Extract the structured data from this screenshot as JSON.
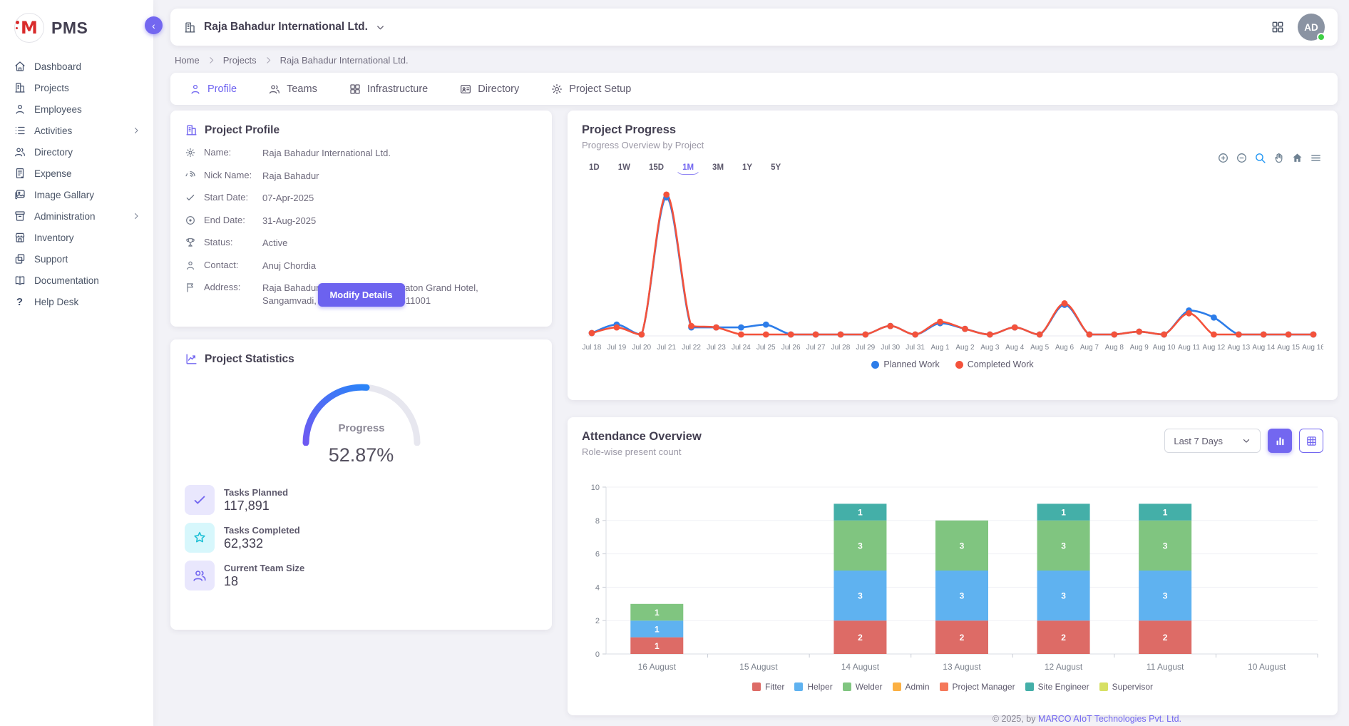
{
  "app": {
    "logo_text": "PMS"
  },
  "sidebar": {
    "items": [
      {
        "label": "Dashboard"
      },
      {
        "label": "Projects"
      },
      {
        "label": "Employees"
      },
      {
        "label": "Activities",
        "expandable": true
      },
      {
        "label": "Directory"
      },
      {
        "label": "Expense"
      },
      {
        "label": "Image Gallary"
      },
      {
        "label": "Administration",
        "expandable": true
      },
      {
        "label": "Inventory"
      },
      {
        "label": "Support"
      },
      {
        "label": "Documentation"
      },
      {
        "label": "Help Desk"
      }
    ]
  },
  "header": {
    "company": "Raja Bahadur International Ltd.",
    "avatar_initials": "AD"
  },
  "breadcrumb": {
    "items": [
      "Home",
      "Projects",
      "Raja Bahadur International Ltd."
    ]
  },
  "tabs": {
    "items": [
      {
        "label": "Profile",
        "active": true
      },
      {
        "label": "Teams"
      },
      {
        "label": "Infrastructure"
      },
      {
        "label": "Directory"
      },
      {
        "label": "Project Setup"
      }
    ]
  },
  "profile_card": {
    "title": "Project Profile",
    "fields": [
      {
        "label": "Name:",
        "value": "Raja Bahadur International Ltd."
      },
      {
        "label": "Nick Name:",
        "value": "Raja Bahadur"
      },
      {
        "label": "Start Date:",
        "value": "07-Apr-2025"
      },
      {
        "label": "End Date:",
        "value": "31-Aug-2025"
      },
      {
        "label": "Status:",
        "value": "Active"
      },
      {
        "label": "Contact:",
        "value": "Anuj Chordia"
      },
      {
        "label": "Address:",
        "value": "Raja Bahadur Mill Rd, behind Sheraton Grand Hotel, Sangamvadi, Pune, Maharashtra 411001"
      }
    ],
    "button_label": "Modify Details"
  },
  "stats_card": {
    "title": "Project Statistics",
    "gauge": {
      "label": "Progress",
      "value_text": "52.87%",
      "percent": 52.87
    },
    "items": [
      {
        "label": "Tasks Planned",
        "value": "117,891"
      },
      {
        "label": "Tasks Completed",
        "value": "62,332"
      },
      {
        "label": "Current Team Size",
        "value": "18"
      }
    ]
  },
  "progress_card": {
    "title": "Project Progress",
    "subtitle": "Progress Overview by Project",
    "ranges": [
      "1D",
      "1W",
      "15D",
      "1M",
      "3M",
      "1Y",
      "5Y"
    ],
    "active_range": "1M"
  },
  "attendance_card": {
    "title": "Attendance Overview",
    "subtitle": "Role-wise present count",
    "filter_value": "Last 7 Days"
  },
  "footer": {
    "prefix": "© 2025, by ",
    "link": "MARCO AIoT Technologies Pvt. Ltd."
  },
  "colors": {
    "accent": "#7367f0",
    "planned": "#2d7de9",
    "completed": "#f4523b",
    "avatar_status": "#3ecf45"
  },
  "icons": {
    "toolbar": [
      "zoom-in-icon",
      "zoom-out-icon",
      "selection-zoom-icon",
      "pan-icon",
      "home-reset-icon",
      "menu-icon"
    ],
    "attendance_toggles": [
      "bar-view-icon",
      "table-view-icon"
    ],
    "header": [
      "building-icon",
      "chevron-down-icon",
      "grid-menu-icon"
    ]
  },
  "chart_data": [
    {
      "type": "line",
      "title": "Project Progress",
      "x": [
        "Jul 18",
        "Jul 19",
        "Jul 20",
        "Jul 21",
        "Jul 22",
        "Jul 23",
        "Jul 24",
        "Jul 25",
        "Jul 26",
        "Jul 27",
        "Jul 28",
        "Jul 29",
        "Jul 30",
        "Jul 31",
        "Aug 1",
        "Aug 2",
        "Aug 3",
        "Aug 4",
        "Aug 5",
        "Aug 6",
        "Aug 7",
        "Aug 8",
        "Aug 9",
        "Aug 10",
        "Aug 11",
        "Aug 12",
        "Aug 13",
        "Aug 14",
        "Aug 15",
        "Aug 16"
      ],
      "series": [
        {
          "name": "Planned Work",
          "color": "#2d7de9",
          "values": [
            2,
            8,
            1,
            98,
            6,
            6,
            6,
            8,
            1,
            1,
            1,
            1,
            7,
            1,
            9,
            5,
            1,
            6,
            1,
            22,
            1,
            1,
            3,
            1,
            18,
            13,
            1,
            1,
            1,
            1
          ]
        },
        {
          "name": "Completed Work",
          "color": "#f4523b",
          "values": [
            2,
            6,
            1,
            100,
            7,
            6,
            1,
            1,
            1,
            1,
            1,
            1,
            7,
            1,
            10,
            5,
            1,
            6,
            1,
            23,
            1,
            1,
            3,
            1,
            16,
            1,
            1,
            1,
            1,
            1
          ]
        }
      ],
      "ylim": [
        0,
        105
      ],
      "y_axis_visible": false,
      "grid": false,
      "smooth": true,
      "legend_position": "bottom"
    },
    {
      "type": "bar",
      "stacked": true,
      "title": "Attendance Overview",
      "categories": [
        "16 August",
        "15 August",
        "14 August",
        "13 August",
        "12 August",
        "11 August",
        "10 August"
      ],
      "series": [
        {
          "name": "Fitter",
          "color": "#dd6b66",
          "values": [
            1,
            0,
            2,
            2,
            2,
            2,
            0
          ]
        },
        {
          "name": "Helper",
          "color": "#5fb2f0",
          "values": [
            1,
            0,
            3,
            3,
            3,
            3,
            0
          ]
        },
        {
          "name": "Welder",
          "color": "#80c580",
          "values": [
            1,
            0,
            3,
            3,
            3,
            3,
            0
          ]
        },
        {
          "name": "Admin",
          "color": "#fbb043",
          "values": [
            0,
            0,
            0,
            0,
            0,
            0,
            0
          ]
        },
        {
          "name": "Project Manager",
          "color": "#f5785a",
          "values": [
            0,
            0,
            0,
            0,
            0,
            0,
            0
          ]
        },
        {
          "name": "Site Engineer",
          "color": "#44afa8",
          "values": [
            0,
            0,
            1,
            0,
            1,
            1,
            0
          ]
        },
        {
          "name": "Supervisor",
          "color": "#d7e064",
          "values": [
            0,
            0,
            0,
            0,
            0,
            0,
            0
          ]
        }
      ],
      "ylim": [
        0,
        10
      ],
      "y_ticks": [
        0,
        2,
        4,
        6,
        8,
        10
      ],
      "grid": true,
      "bar_labels": true,
      "legend_position": "bottom"
    }
  ]
}
